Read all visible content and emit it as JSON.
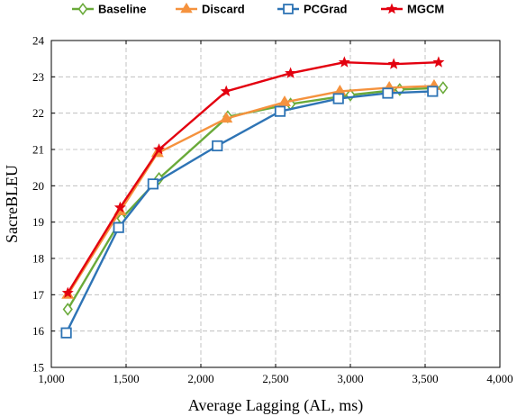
{
  "chart_data": {
    "type": "line",
    "title": "",
    "xlabel": "Average Lagging (AL, ms)",
    "ylabel": "SacreBLEU",
    "xlim": [
      1000,
      4000
    ],
    "ylim": [
      15,
      24
    ],
    "xticks": [
      1000,
      1500,
      2000,
      2500,
      3000,
      3500,
      4000
    ],
    "xtick_labels": [
      "1,000",
      "1,500",
      "2,000",
      "2,500",
      "3,000",
      "3,500",
      "4,000"
    ],
    "yticks": [
      15,
      16,
      17,
      18,
      19,
      20,
      21,
      22,
      23,
      24
    ],
    "ytick_labels": [
      "15",
      "16",
      "17",
      "18",
      "19",
      "20",
      "21",
      "22",
      "23",
      "24"
    ],
    "grid": true,
    "legend_position": "top, outside plot, horizontal",
    "series": [
      {
        "name": "Baseline",
        "color": "#6aaa3a",
        "marker": "diamond",
        "x": [
          1110,
          1470,
          1720,
          2180,
          2600,
          3000,
          3330,
          3620
        ],
        "y": [
          16.6,
          19.1,
          20.2,
          21.9,
          22.25,
          22.5,
          22.65,
          22.7
        ]
      },
      {
        "name": "Discard",
        "color": "#f5923e",
        "marker": "triangle",
        "x": [
          1110,
          1460,
          1710,
          2170,
          2560,
          2930,
          3260,
          3560
        ],
        "y": [
          17.0,
          19.3,
          20.9,
          21.85,
          22.3,
          22.6,
          22.7,
          22.75
        ]
      },
      {
        "name": "PCGrad",
        "color": "#2e74b5",
        "marker": "square",
        "x": [
          1100,
          1450,
          1680,
          2110,
          2530,
          2920,
          3250,
          3550
        ],
        "y": [
          15.95,
          18.85,
          20.05,
          21.1,
          22.05,
          22.4,
          22.55,
          22.6
        ]
      },
      {
        "name": "MGCM",
        "color": "#e3000f",
        "marker": "star",
        "x": [
          1110,
          1460,
          1720,
          2170,
          2600,
          2960,
          3290,
          3590
        ],
        "y": [
          17.05,
          19.4,
          21.0,
          22.6,
          23.1,
          23.4,
          23.35,
          23.4
        ]
      }
    ]
  }
}
